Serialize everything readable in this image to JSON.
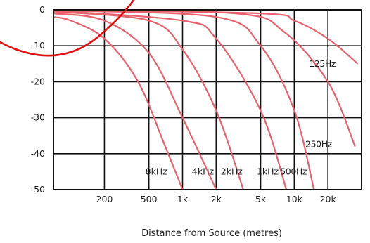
{
  "chart_data": {
    "type": "line",
    "title": "",
    "xlabel": "Distance from Source (metres)",
    "ylabel": "",
    "x_scale": "log",
    "xlim": [
      70,
      40000
    ],
    "ylim": [
      -50,
      0
    ],
    "x_ticks": [
      {
        "value": 200,
        "label": "200"
      },
      {
        "value": 500,
        "label": "500"
      },
      {
        "value": 1000,
        "label": "1k"
      },
      {
        "value": 2000,
        "label": "2k"
      },
      {
        "value": 5000,
        "label": "5k"
      },
      {
        "value": 10000,
        "label": "10k"
      },
      {
        "value": 20000,
        "label": "20k"
      }
    ],
    "y_ticks": [
      0,
      -10,
      -20,
      -30,
      -40,
      -50
    ],
    "grid": true,
    "line_color": "#e8626e",
    "annotation_color": "#e01010",
    "series": [
      {
        "name": "8kHz",
        "x": [
          70,
          100,
          200,
          400,
          700,
          1000
        ],
        "y": [
          -2,
          -3,
          -8,
          -20,
          -38,
          -50
        ]
      },
      {
        "name": "4kHz",
        "x": [
          70,
          200,
          500,
          1000,
          2000
        ],
        "y": [
          -1,
          -3,
          -12,
          -30,
          -50
        ]
      },
      {
        "name": "2kHz",
        "x": [
          70,
          500,
          1000,
          2000,
          3500
        ],
        "y": [
          -0.5,
          -3,
          -11,
          -28,
          -50
        ]
      },
      {
        "name": "1kHz",
        "x": [
          70,
          1000,
          2000,
          5000,
          8500
        ],
        "y": [
          -0.3,
          -3,
          -8,
          -28,
          -50
        ]
      },
      {
        "name": "500Hz",
        "x": [
          70,
          2000,
          5000,
          10000,
          15000
        ],
        "y": [
          -0.2,
          -2,
          -10,
          -28,
          -50
        ]
      },
      {
        "name": "250Hz",
        "x": [
          70,
          3000,
          8000,
          20000,
          35000
        ],
        "y": [
          0,
          -1,
          -6,
          -20,
          -38
        ]
      },
      {
        "name": "125Hz",
        "x": [
          70,
          5000,
          10000,
          20000,
          37000
        ],
        "y": [
          0,
          -1,
          -3,
          -8,
          -15
        ]
      }
    ]
  }
}
